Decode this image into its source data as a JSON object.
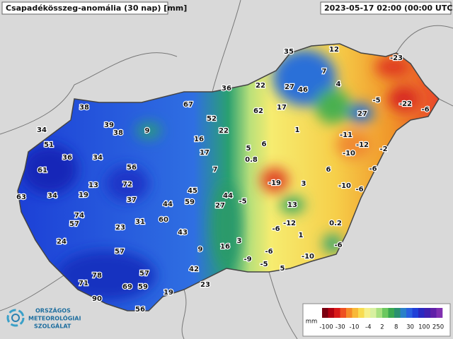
{
  "header": {
    "title": "Csapadékösszeg-anomália (30 nap) [mm]",
    "timestamp": "2023-05-17 02:00 (00:00 UTC)"
  },
  "stations": [
    35,
    12,
    7,
    22,
    27,
    46,
    4,
    36,
    67,
    62,
    17,
    27,
    -5,
    -22,
    -6,
    -23,
    38,
    52,
    39,
    38,
    9,
    22,
    1,
    -11,
    -12,
    -10,
    -2,
    34,
    51,
    36,
    34,
    16,
    17,
    5,
    6,
    0.8,
    7,
    6,
    -6,
    61,
    56,
    13,
    72,
    -19,
    3,
    -10,
    -6,
    63,
    34,
    19,
    45,
    44,
    37,
    44,
    59,
    27,
    -5,
    13,
    74,
    57,
    31,
    60,
    -12,
    0.2,
    23,
    -6,
    1,
    24,
    43,
    3,
    16,
    9,
    -6,
    57,
    -6,
    -9,
    -5,
    -10,
    5,
    42,
    57,
    78,
    71,
    69,
    59,
    19,
    23,
    90,
    56
  ],
  "legend": {
    "unit": "mm",
    "ticks": [
      -100,
      -30,
      -10,
      -4,
      2,
      8,
      30,
      100,
      250
    ]
  },
  "logo": {
    "lines": [
      "ORSZÁGOS",
      "METEOROLÓGIAI",
      "SZOLGÁLAT"
    ]
  }
}
